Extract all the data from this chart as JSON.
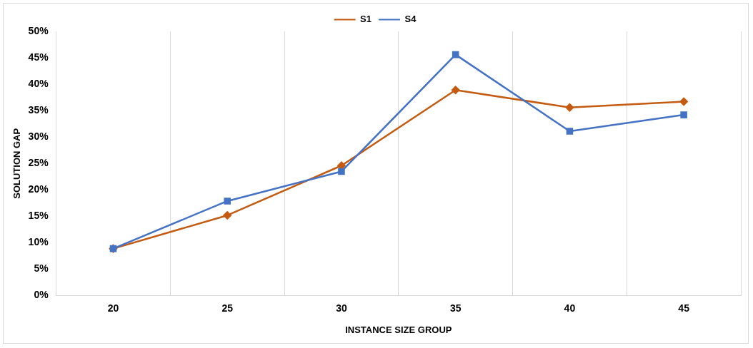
{
  "chart_data": {
    "type": "line",
    "xlabel": "INSTANCE SIZE GROUP",
    "ylabel": "SOLUTION GAP",
    "categories": [
      "20",
      "25",
      "30",
      "35",
      "40",
      "45"
    ],
    "series": [
      {
        "name": "S1",
        "color": "#c55a11",
        "marker": "diamond",
        "values": [
          8.9,
          15.2,
          24.6,
          38.9,
          35.6,
          36.7
        ]
      },
      {
        "name": "S4",
        "color": "#4472c4",
        "marker": "square",
        "values": [
          8.9,
          17.9,
          23.5,
          45.6,
          31.1,
          34.2
        ]
      }
    ],
    "ylim": [
      0,
      50
    ],
    "yticks": [
      {
        "value": 0,
        "label": "0%"
      },
      {
        "value": 5,
        "label": "5%"
      },
      {
        "value": 10,
        "label": "10%"
      },
      {
        "value": 15,
        "label": "15%"
      },
      {
        "value": 20,
        "label": "20%"
      },
      {
        "value": 25,
        "label": "25%"
      },
      {
        "value": 30,
        "label": "30%"
      },
      {
        "value": 35,
        "label": "35%"
      },
      {
        "value": 40,
        "label": "40%"
      },
      {
        "value": 45,
        "label": "45%"
      },
      {
        "value": 50,
        "label": "50%"
      }
    ],
    "grid": "x",
    "legend": "top",
    "line_style": "solid"
  }
}
